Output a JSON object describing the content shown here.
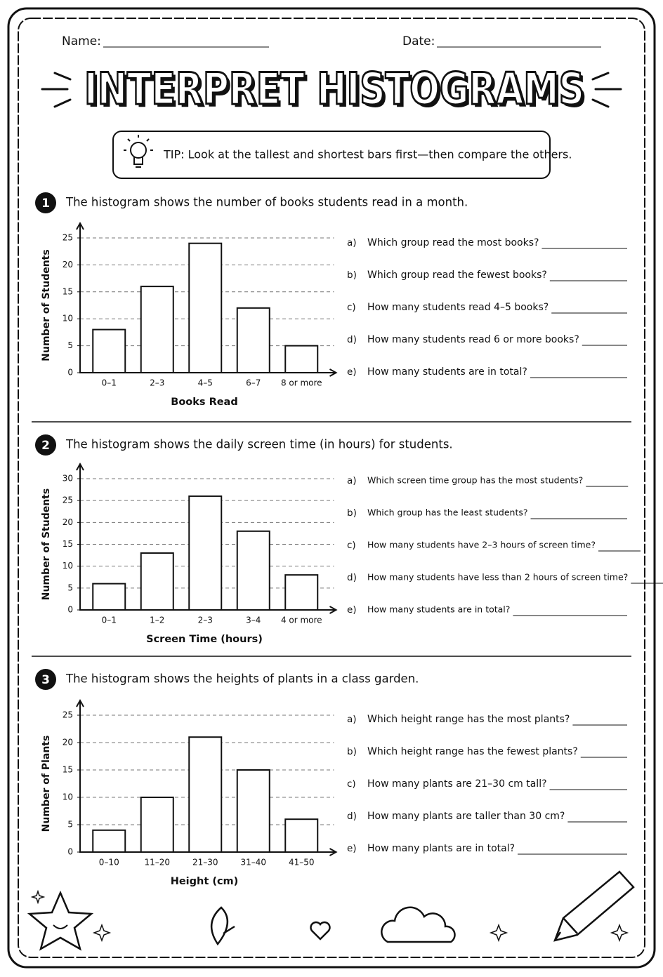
{
  "header": {
    "name_label": "Name:",
    "date_label": "Date:",
    "title": "INTERPRET HISTOGRAMS"
  },
  "tip": "TIP: Look at the tallest and shortest bars first—then compare the others.",
  "problems": [
    {
      "number": 1,
      "prompt": "The histogram shows the number of books students read in a month.",
      "questions": [
        {
          "letter": "a)",
          "text": "Which group read the most books?"
        },
        {
          "letter": "b)",
          "text": "Which group read the fewest books?"
        },
        {
          "letter": "c)",
          "text": "How many students read 4–5 books?"
        },
        {
          "letter": "d)",
          "text": "How many students read 6 or more books?"
        },
        {
          "letter": "e)",
          "text": "How many students are in total?"
        }
      ]
    },
    {
      "number": 2,
      "prompt": "The histogram shows the daily screen time (in hours) for students.",
      "questions": [
        {
          "letter": "a)",
          "text": "Which screen time group has the most students?"
        },
        {
          "letter": "b)",
          "text": "Which group has the least students?"
        },
        {
          "letter": "c)",
          "text": "How many students have 2–3 hours of screen time?"
        },
        {
          "letter": "d)",
          "text": "How many students have less than 2 hours of screen time?"
        },
        {
          "letter": "e)",
          "text": "How many students are in total?"
        }
      ]
    },
    {
      "number": 3,
      "prompt": "The histogram shows the heights of plants in a class garden.",
      "questions": [
        {
          "letter": "a)",
          "text": "Which height range has the most plants?"
        },
        {
          "letter": "b)",
          "text": "Which height range has the fewest plants?"
        },
        {
          "letter": "c)",
          "text": "How many plants are 21–30 cm tall?"
        },
        {
          "letter": "d)",
          "text": "How many plants are taller than 30 cm?"
        },
        {
          "letter": "e)",
          "text": "How many plants are in total?"
        }
      ]
    }
  ],
  "chart_data": [
    {
      "type": "bar",
      "x_label": "Books Read",
      "y_label": "Number of Students",
      "categories": [
        "0–1",
        "2–3",
        "4–5",
        "6–7",
        "8 or more"
      ],
      "values": [
        8,
        16,
        24,
        12,
        5
      ],
      "color": "#ffffff",
      "ylim": [
        0,
        25
      ],
      "yticks": [
        0,
        5,
        10,
        15,
        20,
        25
      ],
      "grid": true
    },
    {
      "type": "bar",
      "x_label": "Screen Time (hours)",
      "y_label": "Number of Students",
      "categories": [
        "0–1",
        "1–2",
        "2–3",
        "3–4",
        "4 or more"
      ],
      "values": [
        6,
        13,
        26,
        18,
        8
      ],
      "color": "#ffffff",
      "ylim": [
        0,
        30
      ],
      "yticks": [
        0,
        5,
        10,
        15,
        20,
        25,
        30
      ],
      "grid": true
    },
    {
      "type": "bar",
      "x_label": "Height (cm)",
      "y_label": "Number of Plants",
      "categories": [
        "0–10",
        "11–20",
        "21–30",
        "31–40",
        "41–50"
      ],
      "values": [
        4,
        10,
        21,
        15,
        6
      ],
      "color": "#ffffff",
      "ylim": [
        0,
        25
      ],
      "yticks": [
        0,
        5,
        10,
        15,
        20,
        25
      ],
      "grid": true
    }
  ]
}
